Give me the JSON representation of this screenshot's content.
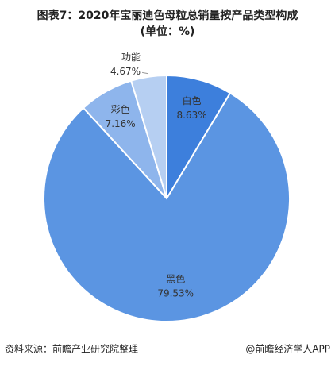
{
  "chart_data": {
    "type": "pie",
    "title": "图表7：2020年宝丽迪色母粒总销量按产品类型构成",
    "subtitle": "(单位：%)",
    "categories": [
      "白色",
      "黑色",
      "彩色",
      "功能"
    ],
    "values": [
      8.63,
      79.53,
      7.16,
      4.67
    ],
    "value_labels": [
      "8.63%",
      "79.53%",
      "7.16%",
      "4.67%"
    ],
    "colors": [
      "#3d7fdc",
      "#5b95e2",
      "#8eb5ec",
      "#b6cff2"
    ]
  },
  "footer": {
    "source": "资料来源：前瞻产业研究院整理",
    "credit": "@前瞻经济学人APP"
  }
}
